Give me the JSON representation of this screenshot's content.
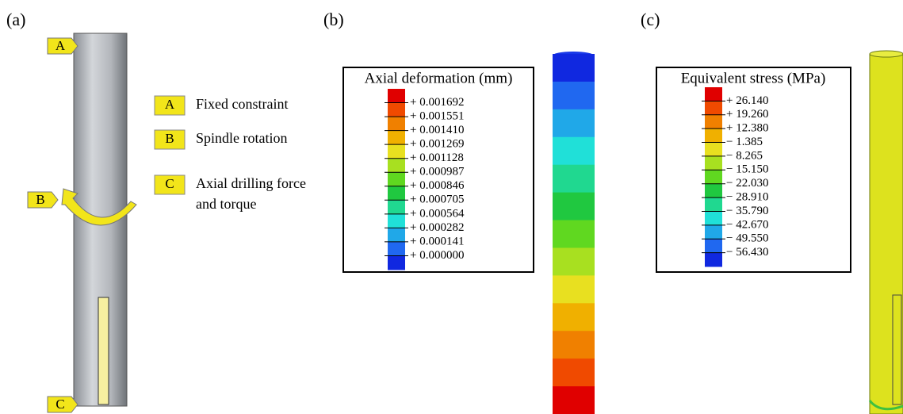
{
  "panels": [
    {
      "label": "(a)",
      "tags": [
        "A",
        "B",
        "C"
      ],
      "legend": [
        {
          "key": "A",
          "text": [
            "Fixed constraint"
          ]
        },
        {
          "key": "B",
          "text": [
            "Spindle rotation"
          ]
        },
        {
          "key": "C",
          "text": [
            "Axial drilling force",
            "and torque"
          ]
        }
      ]
    },
    {
      "label": "(b)",
      "legend_title": "Axial deformation (mm)",
      "levels": [
        "+ 0.001692",
        "+ 0.001551",
        "+ 0.001410",
        "+ 0.001269",
        "+ 0.001128",
        "+ 0.000987",
        "+ 0.000846",
        "+ 0.000705",
        "+ 0.000564",
        "+ 0.000282",
        "+ 0.000141",
        "+ 0.000000"
      ]
    },
    {
      "label": "(c)",
      "legend_title": "Equivalent stress (MPa)",
      "levels": [
        "+ 26.140",
        "+ 19.260",
        "+ 12.380",
        "− 1.385",
        "− 8.265",
        "− 15.150",
        "− 22.030",
        "− 28.910",
        "− 35.790",
        "− 42.670",
        "− 49.550",
        "− 56.430"
      ]
    }
  ]
}
